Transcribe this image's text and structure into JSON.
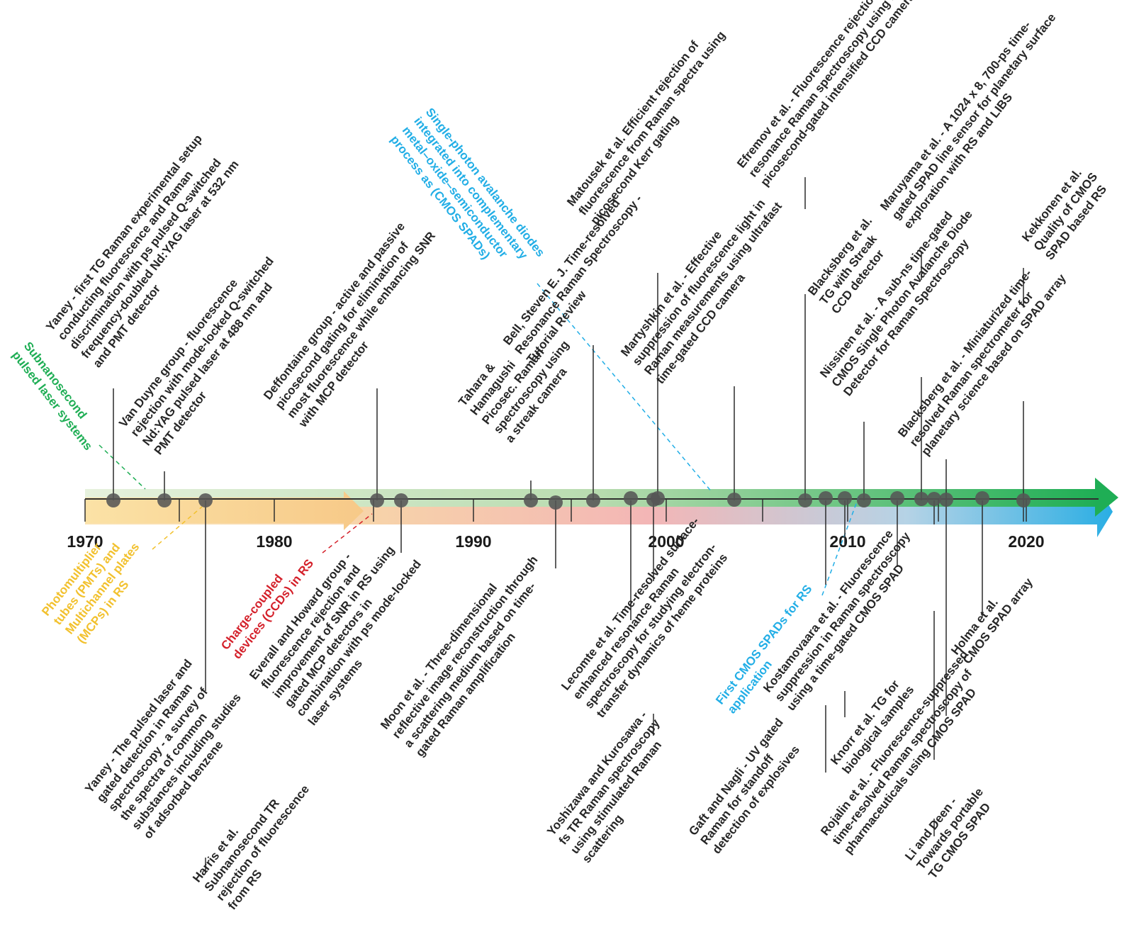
{
  "colors": {
    "green": "#1fae55",
    "blue": "#22aee6",
    "yellow": "#f2c12e",
    "red": "#d4202a",
    "text": "#262626",
    "marker": "#555555"
  },
  "axis": {
    "years": [
      "1970",
      "1980",
      "1990",
      "2000",
      "2010",
      "2020"
    ]
  },
  "technologies": [
    {
      "id": "subnanosecond",
      "color": "green",
      "lines": [
        "Subnanosecond",
        "pulsed laser systems"
      ]
    },
    {
      "id": "pmt",
      "color": "yellow",
      "lines": [
        "Photomultiplier",
        "tubes (PMTs) and",
        "Multichannel plates",
        "(MCPs) in RS"
      ]
    },
    {
      "id": "ccd",
      "color": "red",
      "lines": [
        "Charge-coupled",
        "devices (CCDs) in RS"
      ]
    },
    {
      "id": "spad",
      "color": "blue",
      "lines": [
        "Single-photon avalanche diodes",
        "integrated into complementary",
        "metal–oxide–semiconductor",
        "process as (CMOS SPADs)"
      ]
    },
    {
      "id": "first_cmos",
      "color": "blue",
      "lines": [
        "First CMOS SPADs for RS",
        "application"
      ]
    }
  ],
  "events_above": [
    {
      "id": "yaney1",
      "lines": [
        "Yaney - first TG Raman experimental setup",
        "conducting fluorescence and Raman",
        "discrimination with ps pulsed Q-switched",
        "frequency-doubled Nd:YAG laser at 532 nm",
        "and PMT detector"
      ]
    },
    {
      "id": "vanduyne",
      "lines": [
        "Van Duyne group - fluorescence",
        "rejection with mode-locked Q-switched",
        "Nd:YAG pulsed laser at 488 nm and",
        "PMT detector"
      ]
    },
    {
      "id": "deffontaine",
      "lines": [
        "Deffontaine group - active and passive",
        "picosecond gating for elimination of",
        "most fluorescence while enhancing SNR",
        "with MCP detector"
      ]
    },
    {
      "id": "tahara",
      "lines": [
        "Tahara &",
        "Hamagushi",
        "Picosec. Raman",
        "spectroscopy using",
        "a streak camera"
      ]
    },
    {
      "id": "bell",
      "lines": [
        "Bell, Steven E. J. Time-resolved",
        "Resonance Raman Spectroscopy -",
        "Tutorial Review"
      ]
    },
    {
      "id": "matousek",
      "lines": [
        "Matousek et al. Efficient rejection of",
        "fluorescence from Raman spectra using",
        "picosecond Kerr gating"
      ]
    },
    {
      "id": "martyshkin",
      "lines": [
        "Martyshkin et al. - Effective",
        "suppression of fluorescence light in",
        "Raman measurements using ultrafast",
        "time-gated CCD camera"
      ]
    },
    {
      "id": "efremov",
      "lines": [
        "Efremov et al. - Fluorescence rejection in",
        "resonance Raman spectroscopy using a",
        "picosecond-gated intensified CCD camera"
      ]
    },
    {
      "id": "blacksberg_streak",
      "lines": [
        "Blacksberg et al.",
        "TG with Streak",
        "CCD detector"
      ]
    },
    {
      "id": "nissinen",
      "lines": [
        "Nissinen et al. - A sub-ns time-gated",
        "CMOS Single Photon Avalanche Diode",
        "Detector for Raman Spectroscopy"
      ]
    },
    {
      "id": "maruyama",
      "lines": [
        "Maruyama et al. - A 1024 x 8, 700-ps time-",
        "gated SPAD line sensor for planetary surface",
        "exploration with RS and LIBS"
      ]
    },
    {
      "id": "blacksberg_mini",
      "lines": [
        "Blacksberg et al. - Miniaturized time-",
        "resolved Raman spectrometer for",
        "planetary science based on SPAD array"
      ]
    },
    {
      "id": "kekkonen",
      "lines": [
        "Kekkonen et al.",
        "Quality of CMOS",
        "SPAD based RS"
      ]
    }
  ],
  "events_below": [
    {
      "id": "yaney2",
      "lines": [
        "Yaney - The pulsed laser and",
        "gated detection in Raman",
        "spectroscopy - a survey of",
        "the spectra of common",
        "substances including studies",
        "of adsorbed benzene"
      ]
    },
    {
      "id": "harris",
      "lines": [
        "Harris et al.",
        "Subnanosecond TR",
        "rejection of fluorescence",
        "from RS"
      ]
    },
    {
      "id": "everall",
      "lines": [
        "Everall and Howard group -",
        "fluorescence rejection and",
        "improvement of SNR in RS using",
        "gated MCP detectors in",
        "combination with ps mode-locked",
        "laser systems"
      ]
    },
    {
      "id": "moon",
      "lines": [
        "Moon et al. - Three-dimensional",
        "reflective image reconstruction through",
        "a scattering medium based on time-",
        "gated Raman amplification"
      ]
    },
    {
      "id": "lecomte",
      "lines": [
        "Lecomte et al. Time-resolved surface-",
        "enhanced resonance Raman",
        "spectroscopy for studying electron-",
        "transfer dynamics of heme proteins"
      ]
    },
    {
      "id": "yoshizawa",
      "lines": [
        "Yoshizawa and Kurosawa -",
        "fs TR Raman spectroscopy",
        "using stimulated Raman",
        "scattering"
      ]
    },
    {
      "id": "gaft",
      "lines": [
        "Gaft and Nagli - UV gated",
        "Raman for standoff",
        "detection of explosives"
      ]
    },
    {
      "id": "kostamovaara",
      "lines": [
        "Kostamovaara et al. - Fluorescence",
        "suppression in Raman spectroscopy",
        "using a time-gated CMOS SPAD"
      ]
    },
    {
      "id": "knorr",
      "lines": [
        "Knorr et al. TG for",
        "biological samples"
      ]
    },
    {
      "id": "rojalin",
      "lines": [
        "Rojalin et al. - Fluorescence-suppressed",
        "time-resolved Raman spectroscopy of",
        "pharmaceuticals using CMOS SPAD"
      ]
    },
    {
      "id": "lideen",
      "lines": [
        "Li and Deen -",
        "Towards portable",
        "TG CMOS SPAD"
      ]
    },
    {
      "id": "holma",
      "lines": [
        "Holma et al.",
        "CMOS SPAD array"
      ]
    }
  ]
}
